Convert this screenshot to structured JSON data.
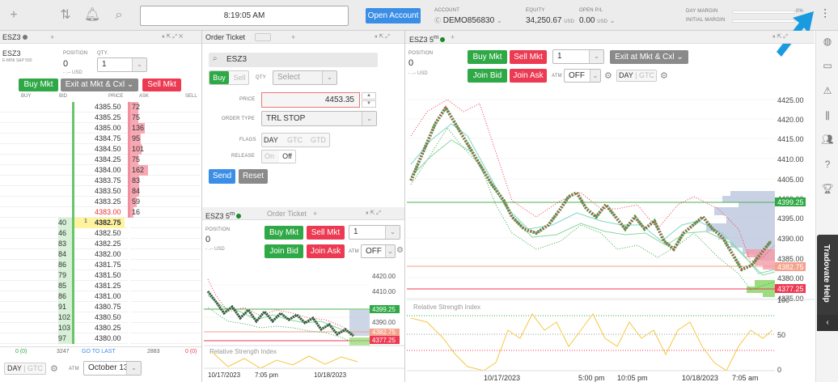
{
  "topbar": {
    "clock": "8:19:05 AM",
    "open_account": "Open Account",
    "account_label": "ACCOUNT",
    "account_value": "DEMO856830",
    "equity_label": "EQUITY",
    "equity_value": "34,250.67",
    "equity_unit": "USD",
    "openpl_label": "OPEN P/L",
    "openpl_value": "0.00",
    "openpl_unit": "USD",
    "day_margin_label": "DAY MARGIN",
    "day_margin_pct": "0%",
    "init_margin_label": "INITIAL MARGIN",
    "init_margin_pct": "0%",
    "icons": [
      "plus-icon",
      "arrows-updown-icon",
      "bell-icon",
      "search-icon",
      "sliders-icon"
    ]
  },
  "dom": {
    "tab": "ESZ3",
    "symbol": "ESZ3",
    "description": "E-MINI S&P 500",
    "position_label": "POSITION",
    "position_value": "0",
    "position_pl": "- .-- USD",
    "qty_label": "QTY.",
    "qty_value": "1",
    "buy_mkt": "Buy Mkt",
    "exit": "Exit at Mkt & Cxl",
    "sell_mkt": "Sell Mkt",
    "headers": {
      "buy": "BUY",
      "bid": "BID",
      "price": "PRICE",
      "ask": "ASK",
      "sell": "SELL"
    },
    "rows": [
      {
        "bid": "",
        "price": "4385.50",
        "ask": "72",
        "askw": 72
      },
      {
        "bid": "",
        "price": "4385.25",
        "ask": "75",
        "askw": 75
      },
      {
        "bid": "",
        "price": "4385.00",
        "ask": "136",
        "askw": 136
      },
      {
        "bid": "",
        "price": "4384.75",
        "ask": "95",
        "askw": 95
      },
      {
        "bid": "",
        "price": "4384.50",
        "ask": "101",
        "askw": 101
      },
      {
        "bid": "",
        "price": "4384.25",
        "ask": "75",
        "askw": 75
      },
      {
        "bid": "",
        "price": "4384.00",
        "ask": "162",
        "askw": 162
      },
      {
        "bid": "",
        "price": "4383.75",
        "ask": "83",
        "askw": 83
      },
      {
        "bid": "",
        "price": "4383.50",
        "ask": "84",
        "askw": 84
      },
      {
        "bid": "",
        "price": "4383.25",
        "ask": "59",
        "askw": 59
      },
      {
        "bid": "",
        "price": "4383.00",
        "ask": "16",
        "askw": 16,
        "red": true
      },
      {
        "bid": "40",
        "price": "4382.75",
        "ask": "",
        "last": "1",
        "hl": true
      },
      {
        "bid": "46",
        "price": "4382.50",
        "ask": ""
      },
      {
        "bid": "83",
        "price": "4382.25",
        "ask": ""
      },
      {
        "bid": "84",
        "price": "4382.00",
        "ask": ""
      },
      {
        "bid": "86",
        "price": "4381.75",
        "ask": ""
      },
      {
        "bid": "79",
        "price": "4381.50",
        "ask": ""
      },
      {
        "bid": "85",
        "price": "4381.25",
        "ask": ""
      },
      {
        "bid": "86",
        "price": "4381.00",
        "ask": ""
      },
      {
        "bid": "91",
        "price": "4380.75",
        "ask": ""
      },
      {
        "bid": "102",
        "price": "4380.50",
        "ask": ""
      },
      {
        "bid": "103",
        "price": "4380.25",
        "ask": ""
      },
      {
        "bid": "97",
        "price": "4380.00",
        "ask": ""
      }
    ],
    "footer": {
      "buy": "0 (0)",
      "bid_total": "3247",
      "goto": "GO TO LAST",
      "ask_total": "2883",
      "sell": "0 (0)"
    },
    "day": "DAY",
    "gtc": "GTC",
    "atm": "ATM",
    "date": "October 13"
  },
  "ticket": {
    "tab": "Order Ticket",
    "symbol": "ESZ3",
    "buy": "Buy",
    "sell": "Sell",
    "qty_label": "QTY",
    "qty_placeholder": "Select",
    "price_label": "PRICE",
    "price_value": "4453.35",
    "order_type_label": "ORDER TYPE",
    "order_type": "TRL STOP",
    "flags_label": "FLAGS",
    "flags": [
      "DAY",
      "GTC",
      "GTD"
    ],
    "release_label": "RELEASE",
    "on": "On",
    "off": "Off",
    "send": "Send",
    "reset": "Reset"
  },
  "mini": {
    "tab": "ESZ3 5",
    "tab_sup": "m",
    "tab2": "Order Ticket",
    "position_label": "POSITION",
    "position_value": "0",
    "position_pl": "- .-- USD",
    "buy_mkt": "Buy Mkt",
    "sell_mkt": "Sell Mkt",
    "qty": "1",
    "join_bid": "Join Bid",
    "join_ask": "Join Ask",
    "atm": "ATM",
    "atm_value": "OFF",
    "prices": [
      "4420.00",
      "4410.00",
      "4390.00"
    ],
    "tag_green": "4399.25",
    "tag_red": "4382.75",
    "tag_red2": "4377.25",
    "rsi": "Relative Strength Index",
    "dates": [
      "10/17/2023",
      "7:05 pm",
      "10/18/2023"
    ]
  },
  "chart": {
    "tab": "ESZ3 5",
    "tab_sup": "m",
    "position_label": "POSITION",
    "position_value": "0",
    "position_pl": "- .-- USD",
    "buy_mkt": "Buy Mkt",
    "sell_mkt": "Sell Mkt",
    "qty": "1",
    "exit": "Exit at Mkt & Cxl",
    "join_bid": "Join Bid",
    "join_ask": "Join Ask",
    "atm": "ATM",
    "atm_value": "OFF",
    "day": "DAY",
    "gtc": "GTC",
    "axis": [
      "4425.00",
      "4420.00",
      "4415.00",
      "4410.00",
      "4405.00",
      "4400.00",
      "4395.00",
      "4390.00",
      "4385.00",
      "4380.00",
      "4375.00"
    ],
    "tag_green": "4399.25",
    "tag_red": "4382.75",
    "tag_red2": "4377.25",
    "rsi": "Relative Strength Index",
    "rsi_axis": [
      "100",
      "50",
      "0"
    ],
    "dates": [
      "10/17/2023",
      "5:00 pm",
      "10:05 pm",
      "10/18/2023",
      "7:05 am"
    ]
  },
  "help": "Tradovate Help"
}
